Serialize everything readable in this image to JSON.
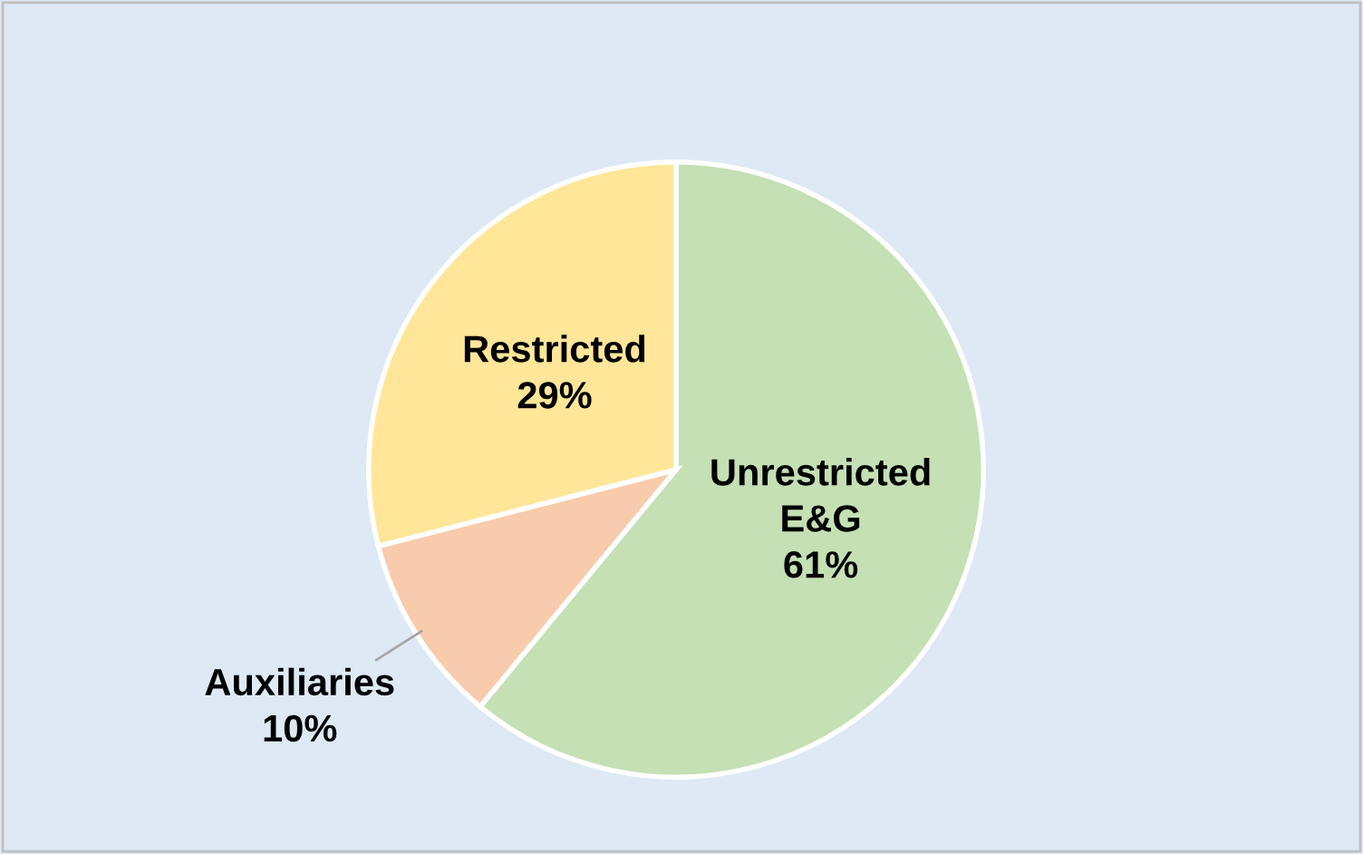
{
  "chart_data": {
    "type": "pie",
    "categories": [
      "Unrestricted E&G",
      "Auxiliaries",
      "Restricted"
    ],
    "values": [
      61,
      10,
      29
    ],
    "value_labels": [
      "61%",
      "10%",
      "29%"
    ],
    "colors": [
      "#c5e0b4",
      "#f8cbad",
      "#ffe699"
    ]
  }
}
